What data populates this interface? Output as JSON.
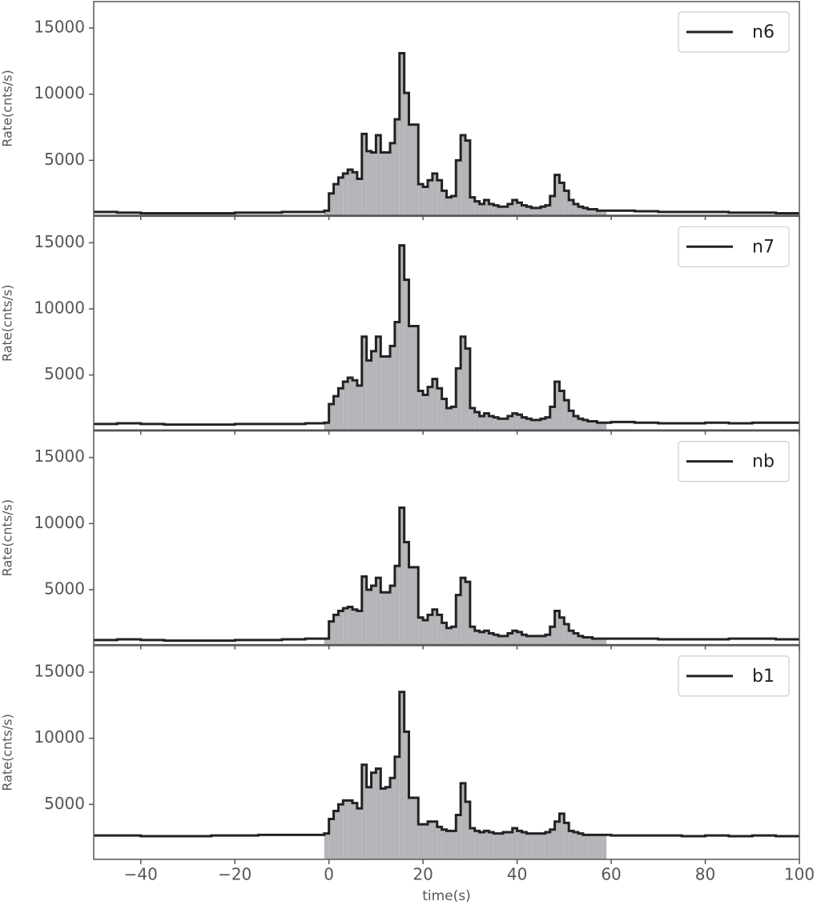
{
  "chart_data": [
    {
      "type": "histogram",
      "ylabel": "Rate(cnts/s)",
      "xlim": [
        -50,
        100
      ],
      "ylim": [
        850,
        17000
      ],
      "yticks": [
        5000,
        10000,
        15000
      ],
      "legend": "upper right",
      "fill_range": [
        -1,
        59
      ],
      "fill_color": "#b4b5b8",
      "bins": [
        -50,
        -45,
        -40,
        -35,
        -30,
        -25,
        -20,
        -15,
        -10,
        -5,
        -1,
        0,
        1,
        2,
        3,
        4,
        5,
        6,
        7,
        8,
        9,
        10,
        11,
        12,
        13,
        14,
        15,
        16,
        17,
        18,
        19,
        20,
        21,
        22,
        23,
        24,
        25,
        26,
        27,
        28,
        29,
        30,
        31,
        32,
        33,
        34,
        35,
        36,
        37,
        38,
        39,
        40,
        41,
        42,
        43,
        44,
        45,
        46,
        47,
        48,
        49,
        50,
        51,
        52,
        53,
        54,
        55,
        56,
        57,
        58,
        59,
        60,
        65,
        70,
        75,
        80,
        85,
        90,
        95,
        100
      ],
      "series": [
        {
          "name": "n6",
          "color": "#222222",
          "values": [
            1100,
            1050,
            1000,
            1000,
            1000,
            1000,
            1050,
            1050,
            1100,
            1100,
            1200,
            2500,
            3200,
            3700,
            4000,
            4300,
            4100,
            3600,
            7000,
            5700,
            5600,
            6900,
            5600,
            5600,
            6300,
            8100,
            13100,
            10100,
            7700,
            7700,
            3200,
            3000,
            3500,
            4000,
            3500,
            2700,
            2200,
            2300,
            5000,
            6900,
            6500,
            2200,
            1900,
            1700,
            2000,
            1700,
            1600,
            1500,
            1500,
            1700,
            2000,
            1800,
            1600,
            1500,
            1400,
            1400,
            1500,
            1600,
            2300,
            3900,
            3300,
            2700,
            2000,
            1700,
            1500,
            1400,
            1300,
            1300,
            1200,
            1200,
            1200,
            1200,
            1150,
            1100,
            1100,
            1100,
            1050,
            1050,
            1000
          ]
        }
      ]
    },
    {
      "type": "histogram",
      "ylabel": "Rate(cnts/s)",
      "xlim": [
        -50,
        100
      ],
      "ylim": [
        850,
        17000
      ],
      "yticks": [
        5000,
        10000,
        15000
      ],
      "legend": "upper right",
      "fill_range": [
        -1,
        59
      ],
      "fill_color": "#b4b5b8",
      "bins": [
        -50,
        -45,
        -40,
        -35,
        -30,
        -25,
        -20,
        -15,
        -10,
        -5,
        -1,
        0,
        1,
        2,
        3,
        4,
        5,
        6,
        7,
        8,
        9,
        10,
        11,
        12,
        13,
        14,
        15,
        16,
        17,
        18,
        19,
        20,
        21,
        22,
        23,
        24,
        25,
        26,
        27,
        28,
        29,
        30,
        31,
        32,
        33,
        34,
        35,
        36,
        37,
        38,
        39,
        40,
        41,
        42,
        43,
        44,
        45,
        46,
        47,
        48,
        49,
        50,
        51,
        52,
        53,
        54,
        55,
        56,
        57,
        58,
        59,
        60,
        65,
        70,
        75,
        80,
        85,
        90,
        95,
        100
      ],
      "series": [
        {
          "name": "n7",
          "color": "#222222",
          "values": [
            1300,
            1350,
            1300,
            1250,
            1250,
            1250,
            1300,
            1300,
            1300,
            1350,
            1400,
            2800,
            3400,
            4000,
            4500,
            4800,
            4600,
            4200,
            7900,
            6100,
            6800,
            7900,
            6400,
            6400,
            7200,
            9000,
            14800,
            12200,
            8700,
            8700,
            3800,
            3500,
            4100,
            4700,
            4000,
            3200,
            2500,
            2600,
            5500,
            7900,
            7000,
            2500,
            2200,
            1900,
            2100,
            1900,
            1800,
            1700,
            1700,
            1900,
            2100,
            2000,
            1800,
            1700,
            1600,
            1600,
            1700,
            1800,
            2600,
            4500,
            3800,
            3100,
            2300,
            1900,
            1700,
            1600,
            1500,
            1500,
            1400,
            1400,
            1400,
            1450,
            1400,
            1350,
            1350,
            1400,
            1350,
            1400,
            1400
          ]
        }
      ]
    },
    {
      "type": "histogram",
      "ylabel": "Rate(cnts/s)",
      "xlim": [
        -50,
        100
      ],
      "ylim": [
        850,
        17000
      ],
      "yticks": [
        5000,
        10000,
        15000
      ],
      "legend": "upper right",
      "fill_range": [
        -1,
        59
      ],
      "fill_color": "#b4b5b8",
      "bins": [
        -50,
        -45,
        -40,
        -35,
        -30,
        -25,
        -20,
        -15,
        -10,
        -5,
        -1,
        0,
        1,
        2,
        3,
        4,
        5,
        6,
        7,
        8,
        9,
        10,
        11,
        12,
        13,
        14,
        15,
        16,
        17,
        18,
        19,
        20,
        21,
        22,
        23,
        24,
        25,
        26,
        27,
        28,
        29,
        30,
        31,
        32,
        33,
        34,
        35,
        36,
        37,
        38,
        39,
        40,
        41,
        42,
        43,
        44,
        45,
        46,
        47,
        48,
        49,
        50,
        51,
        52,
        53,
        54,
        55,
        56,
        57,
        58,
        59,
        60,
        65,
        70,
        75,
        80,
        85,
        90,
        95,
        100
      ],
      "series": [
        {
          "name": "nb",
          "color": "#222222",
          "values": [
            1200,
            1250,
            1200,
            1150,
            1150,
            1150,
            1200,
            1200,
            1250,
            1300,
            1300,
            2600,
            3100,
            3400,
            3600,
            3700,
            3500,
            3400,
            6000,
            5000,
            5300,
            5900,
            4800,
            4800,
            5300,
            6800,
            11200,
            8600,
            6700,
            6700,
            2900,
            2700,
            3100,
            3500,
            3100,
            2500,
            2100,
            2200,
            4600,
            5900,
            5600,
            2200,
            1900,
            1800,
            1900,
            1700,
            1600,
            1500,
            1500,
            1700,
            1900,
            1800,
            1600,
            1500,
            1500,
            1500,
            1500,
            1600,
            2200,
            3400,
            2900,
            2400,
            1900,
            1700,
            1500,
            1400,
            1400,
            1300,
            1300,
            1300,
            1300,
            1300,
            1300,
            1250,
            1250,
            1250,
            1300,
            1300,
            1250
          ]
        }
      ]
    },
    {
      "type": "histogram",
      "ylabel": "Rate(cnts/s)",
      "xlabel": "time(s)",
      "xlim": [
        -50,
        100
      ],
      "ylim": [
        850,
        17000
      ],
      "yticks": [
        5000,
        10000,
        15000
      ],
      "xticks": [
        {
          "value": -40,
          "label": "−40"
        },
        {
          "value": -20,
          "label": "−20"
        },
        0,
        20,
        40,
        60,
        80,
        100
      ],
      "legend": "upper right",
      "fill_range": [
        -1,
        59
      ],
      "fill_color": "#b4b5b8",
      "bins": [
        -50,
        -45,
        -40,
        -35,
        -30,
        -25,
        -20,
        -15,
        -10,
        -5,
        -1,
        0,
        1,
        2,
        3,
        4,
        5,
        6,
        7,
        8,
        9,
        10,
        11,
        12,
        13,
        14,
        15,
        16,
        17,
        18,
        19,
        20,
        21,
        22,
        23,
        24,
        25,
        26,
        27,
        28,
        29,
        30,
        31,
        32,
        33,
        34,
        35,
        36,
        37,
        38,
        39,
        40,
        41,
        42,
        43,
        44,
        45,
        46,
        47,
        48,
        49,
        50,
        51,
        52,
        53,
        54,
        55,
        56,
        57,
        58,
        59,
        60,
        65,
        70,
        75,
        80,
        85,
        90,
        95,
        100
      ],
      "series": [
        {
          "name": "b1",
          "color": "#222222",
          "values": [
            2650,
            2650,
            2600,
            2600,
            2600,
            2650,
            2650,
            2700,
            2700,
            2700,
            2800,
            3900,
            4500,
            5000,
            5300,
            5300,
            5100,
            4700,
            8000,
            6300,
            7400,
            7700,
            6200,
            6300,
            7000,
            8600,
            13500,
            10500,
            5500,
            5500,
            3500,
            3500,
            3700,
            3700,
            3300,
            3100,
            3000,
            3000,
            4200,
            6600,
            5200,
            3200,
            3000,
            2900,
            3000,
            2900,
            2800,
            2800,
            2900,
            2900,
            3200,
            3000,
            2900,
            2800,
            2800,
            2800,
            2800,
            2900,
            3100,
            3700,
            4300,
            3600,
            3000,
            2900,
            2800,
            2700,
            2700,
            2700,
            2700,
            2700,
            2700,
            2650,
            2650,
            2650,
            2600,
            2650,
            2600,
            2650,
            2600
          ]
        }
      ]
    }
  ]
}
